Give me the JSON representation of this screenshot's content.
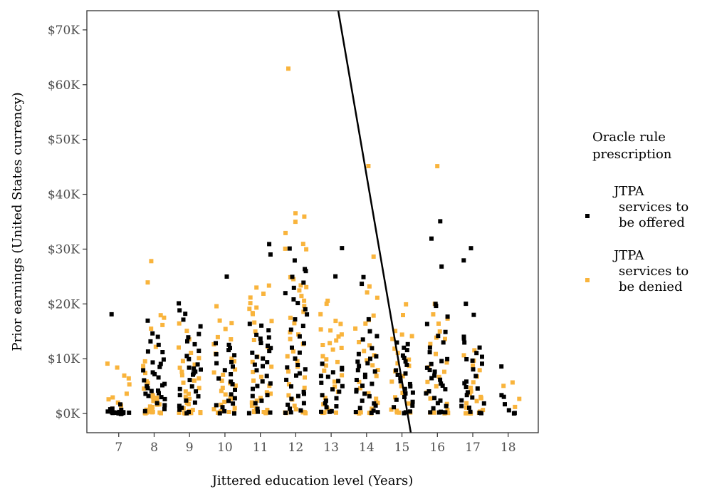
{
  "chart_data": {
    "type": "scatter",
    "title": "",
    "xlabel": "Jittered education level (Years)",
    "ylabel": "Prior earnings (United States currency)",
    "xlim": [
      6.1,
      18.85
    ],
    "ylim": [
      -3500,
      73500
    ],
    "x_ticks": [
      7,
      8,
      9,
      10,
      11,
      12,
      13,
      14,
      15,
      16,
      17,
      18
    ],
    "x_tick_labels": [
      "7",
      "8",
      "9",
      "10",
      "11",
      "12",
      "13",
      "14",
      "15",
      "16",
      "17",
      "18"
    ],
    "y_ticks": [
      0,
      10000,
      20000,
      30000,
      40000,
      50000,
      60000,
      70000
    ],
    "y_tick_labels": [
      "$0K",
      "$10K",
      "$20K",
      "$30K",
      "$40K",
      "$50K",
      "$60K",
      "$70K"
    ],
    "grid": false,
    "legend": {
      "title_lines": [
        "Oracle rule",
        "prescription"
      ],
      "position": "right",
      "entries": [
        {
          "series": "offered",
          "lines": [
            "JTPA",
            "services to",
            "be offered"
          ]
        },
        {
          "series": "denied",
          "lines": [
            "JTPA",
            "services to",
            "be denied"
          ]
        }
      ]
    },
    "colors": {
      "offered": "#000000",
      "denied": "#f9b43c",
      "boundary": "#000000"
    },
    "boundary_line": {
      "x1": 13.2,
      "y1": 73500,
      "x2": 15.25,
      "y2": -3500
    },
    "jitter_width": 0.32,
    "groups": [
      {
        "edu": 7,
        "offered": [
          18000,
          1500,
          1000,
          800,
          600,
          400,
          200,
          100,
          0,
          0,
          0,
          0,
          0,
          0,
          0,
          0,
          0,
          0,
          0,
          0,
          0
        ],
        "denied": [
          9000,
          8500,
          7000,
          6500,
          5500,
          3500,
          3000,
          2500,
          2000,
          1500,
          1000
        ]
      },
      {
        "edu": 8,
        "offered": [
          17000,
          14500,
          14000,
          13000,
          12500,
          11500,
          11000,
          10000,
          9500,
          9000,
          8500,
          8000,
          7500,
          7000,
          6500,
          6000,
          5500,
          5000,
          4800,
          4500,
          4200,
          4000,
          3800,
          3500,
          3200,
          3000,
          2500,
          2000,
          1500,
          1000,
          500
        ],
        "denied": [
          28000,
          24000,
          18000,
          17500,
          16000,
          15500,
          12000,
          9500,
          8500,
          7500,
          6000,
          5500,
          4500,
          3500,
          3000,
          2800,
          2500,
          2200,
          2000,
          1800,
          1500,
          1200,
          1000,
          800,
          600,
          500,
          400,
          300,
          200,
          100,
          0,
          0,
          0,
          0,
          0,
          0
        ]
      },
      {
        "edu": 9,
        "offered": [
          20000,
          19000,
          18000,
          17000,
          16000,
          14500,
          14000,
          13000,
          12500,
          11500,
          10500,
          10000,
          9000,
          8500,
          8000,
          8200,
          7800,
          7500,
          7000,
          6000,
          5000,
          4500,
          4000,
          3500,
          3000,
          2500,
          2000,
          1500,
          1000,
          500,
          0,
          0
        ],
        "denied": [
          16500,
          15000,
          13500,
          12000,
          11000,
          10000,
          9500,
          9000,
          8500,
          7500,
          6800,
          6500,
          6000,
          5500,
          4500,
          4000,
          3500,
          3000,
          2500,
          2000,
          1500,
          1000,
          800,
          600,
          400,
          200,
          0,
          0,
          0,
          0,
          0
        ]
      },
      {
        "edu": 10,
        "offered": [
          25000,
          13000,
          12500,
          12000,
          11500,
          11000,
          10500,
          9500,
          9000,
          8500,
          8000,
          7000,
          6500,
          6000,
          5500,
          4500,
          3500,
          3000,
          2500,
          2000,
          1500,
          1000,
          500,
          0,
          0
        ],
        "denied": [
          19500,
          17000,
          16500,
          15500,
          14000,
          13500,
          12500,
          11000,
          10000,
          9500,
          8000,
          7500,
          7000,
          6000,
          5500,
          5000,
          4500,
          4000,
          3500,
          3000,
          2500,
          2000,
          1500,
          1000,
          800,
          500,
          300,
          0,
          0,
          0,
          0
        ]
      },
      {
        "edu": 11,
        "offered": [
          31000,
          29000,
          16500,
          16000,
          15000,
          14500,
          14000,
          13500,
          13000,
          12500,
          12000,
          11500,
          11000,
          10500,
          10000,
          9500,
          9000,
          8500,
          8000,
          7000,
          6000,
          5500,
          5000,
          4500,
          3500,
          3000,
          2500,
          2000,
          1000,
          500,
          0,
          0
        ],
        "denied": [
          23500,
          23000,
          22000,
          21000,
          20000,
          19500,
          19000,
          18500,
          18000,
          17000,
          16500,
          15000,
          13500,
          12000,
          10500,
          9500,
          8500,
          7500,
          6500,
          6000,
          5000,
          4000,
          3500,
          3000,
          2500,
          2000,
          1500,
          1000,
          500,
          300,
          0,
          0,
          0,
          0
        ]
      },
      {
        "edu": 12,
        "offered": [
          30000,
          28000,
          26500,
          26000,
          25000,
          24000,
          23000,
          22000,
          21000,
          20000,
          19000,
          18000,
          17000,
          16000,
          15500,
          14000,
          13000,
          12000,
          11000,
          10000,
          9000,
          8500,
          8000,
          7500,
          7000,
          6000,
          5000,
          4000,
          3500,
          3000,
          2500,
          2000,
          1500,
          1000,
          500,
          0,
          0
        ],
        "denied": [
          63000,
          36500,
          36000,
          35000,
          33000,
          31000,
          30000,
          30000,
          25000,
          24500,
          23500,
          23000,
          22500,
          21500,
          20500,
          19500,
          18500,
          17500,
          16500,
          15000,
          14500,
          13500,
          12500,
          11500,
          10500,
          9500,
          8500,
          7500,
          6500,
          5500,
          4500,
          3500,
          2500,
          1500,
          800,
          400,
          0,
          0,
          0,
          0,
          0
        ]
      },
      {
        "edu": 13,
        "offered": [
          30000,
          25000,
          9000,
          8500,
          8000,
          7500,
          7000,
          6500,
          6000,
          5500,
          5000,
          4500,
          4000,
          3500,
          3000,
          2500,
          2000,
          1500,
          1000,
          500,
          0,
          0
        ],
        "denied": [
          20500,
          20000,
          18000,
          17000,
          16500,
          15500,
          15000,
          14500,
          14000,
          13500,
          13000,
          12500,
          12000,
          11500,
          10500,
          10000,
          9500,
          8800,
          7800,
          6800,
          5800,
          4800,
          3800,
          2800,
          1800,
          800,
          300,
          0,
          0,
          0,
          0
        ]
      },
      {
        "edu": 14,
        "offered": [
          25000,
          23500,
          17000,
          15000,
          14000,
          13500,
          12000,
          11000,
          10500,
          10000,
          9500,
          9000,
          8500,
          8000,
          7500,
          7000,
          6500,
          6000,
          5500,
          5000,
          4500,
          4000,
          3500,
          3000,
          2500,
          2000,
          1500,
          1000,
          500,
          0,
          0,
          0
        ],
        "denied": [
          45000,
          28500,
          23000,
          22000,
          21000,
          18000,
          17000,
          16500,
          15500,
          13000,
          12500,
          11500,
          10800,
          9800,
          8800,
          7800,
          6800,
          5800,
          4800,
          3800,
          2800,
          1800,
          800,
          300,
          0,
          0,
          0,
          0
        ]
      },
      {
        "edu": 15,
        "offered": [
          13000,
          12500,
          12000,
          11500,
          10500,
          10000,
          9500,
          9000,
          8000,
          7500,
          7000,
          6500,
          6000,
          5500,
          5000,
          4500,
          4000,
          3500,
          3000,
          2500,
          2000,
          1500,
          1000,
          500,
          0,
          0
        ],
        "denied": [
          20000,
          18000,
          15000,
          14500,
          14000,
          13500,
          12000,
          11000,
          10000,
          9000,
          8500,
          7800,
          6800,
          5800,
          4800,
          3800,
          2800,
          1800,
          800,
          300,
          0,
          0,
          0
        ]
      },
      {
        "edu": 16,
        "offered": [
          35000,
          32000,
          27000,
          20000,
          19500,
          17500,
          16500,
          15000,
          14000,
          13000,
          12000,
          11000,
          10000,
          9500,
          9000,
          8500,
          8000,
          7500,
          7000,
          6500,
          6000,
          5500,
          5000,
          4500,
          4000,
          3500,
          3000,
          2500,
          2000,
          1500,
          1000,
          500,
          0,
          0,
          0,
          0
        ],
        "denied": [
          45000,
          20000,
          18000,
          17500,
          16500,
          15000,
          14000,
          13500,
          12500,
          11000,
          9500,
          8500,
          7800,
          6800,
          5800,
          4800,
          3800,
          2800,
          1800,
          800,
          300,
          0,
          0,
          0
        ]
      },
      {
        "edu": 17,
        "offered": [
          30000,
          28000,
          20000,
          18000,
          14000,
          13500,
          13000,
          12000,
          11000,
          10500,
          10000,
          9500,
          9000,
          8000,
          7000,
          6000,
          5500,
          5000,
          4500,
          4000,
          3500,
          3000,
          2500,
          2000,
          1500,
          1000,
          500,
          0,
          0
        ],
        "denied": [
          11500,
          10500,
          9800,
          8800,
          7800,
          6800,
          5800,
          4800,
          4200,
          3800,
          3200,
          2800,
          2200,
          1800,
          1200,
          800,
          400,
          200,
          0,
          0,
          0,
          0
        ]
      },
      {
        "edu": 18,
        "offered": [
          8500,
          3500,
          3000,
          1500,
          500,
          0,
          0
        ],
        "denied": [
          5500,
          5000,
          2500,
          1000
        ]
      }
    ]
  }
}
